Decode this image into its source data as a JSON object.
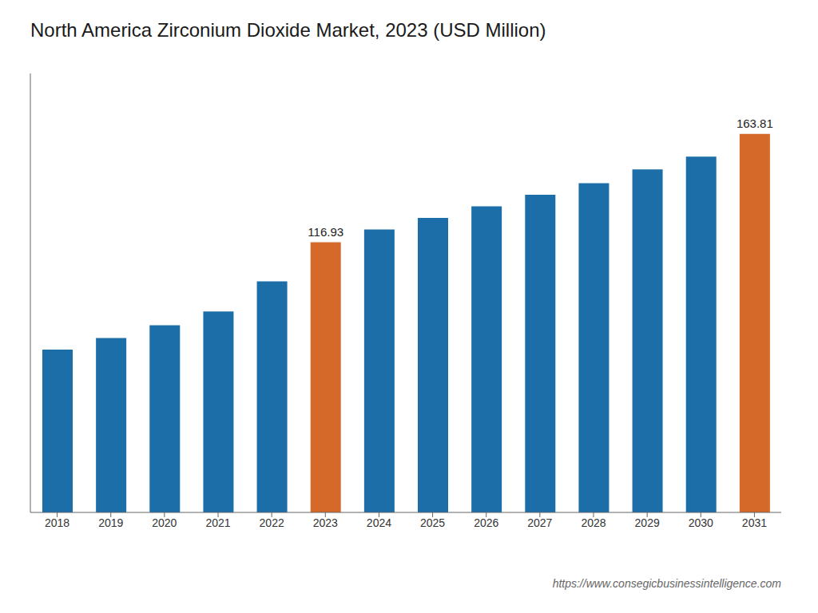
{
  "chart_data": {
    "type": "bar",
    "title": "North America Zirconium Dioxide Market, 2023 (USD Million)",
    "categories": [
      "2018",
      "2019",
      "2020",
      "2021",
      "2022",
      "2023",
      "2024",
      "2025",
      "2026",
      "2027",
      "2028",
      "2029",
      "2030",
      "2031"
    ],
    "values": [
      70.5,
      75.5,
      81.0,
      87.0,
      100.0,
      116.93,
      122.5,
      127.5,
      132.5,
      137.5,
      142.5,
      148.5,
      154.0,
      163.81
    ],
    "colors": [
      "#1b6ea8",
      "#1b6ea8",
      "#1b6ea8",
      "#1b6ea8",
      "#1b6ea8",
      "#d4692a",
      "#1b6ea8",
      "#1b6ea8",
      "#1b6ea8",
      "#1b6ea8",
      "#1b6ea8",
      "#1b6ea8",
      "#1b6ea8",
      "#d4692a"
    ],
    "data_labels": true,
    "value_labels": [
      null,
      null,
      null,
      null,
      null,
      "116.93",
      null,
      null,
      null,
      null,
      null,
      null,
      null,
      "163.81"
    ],
    "ylim": [
      0,
      190
    ],
    "tick_labels": "x",
    "grid": false,
    "source": "https://www.consegicbusinessintelligence.com"
  }
}
